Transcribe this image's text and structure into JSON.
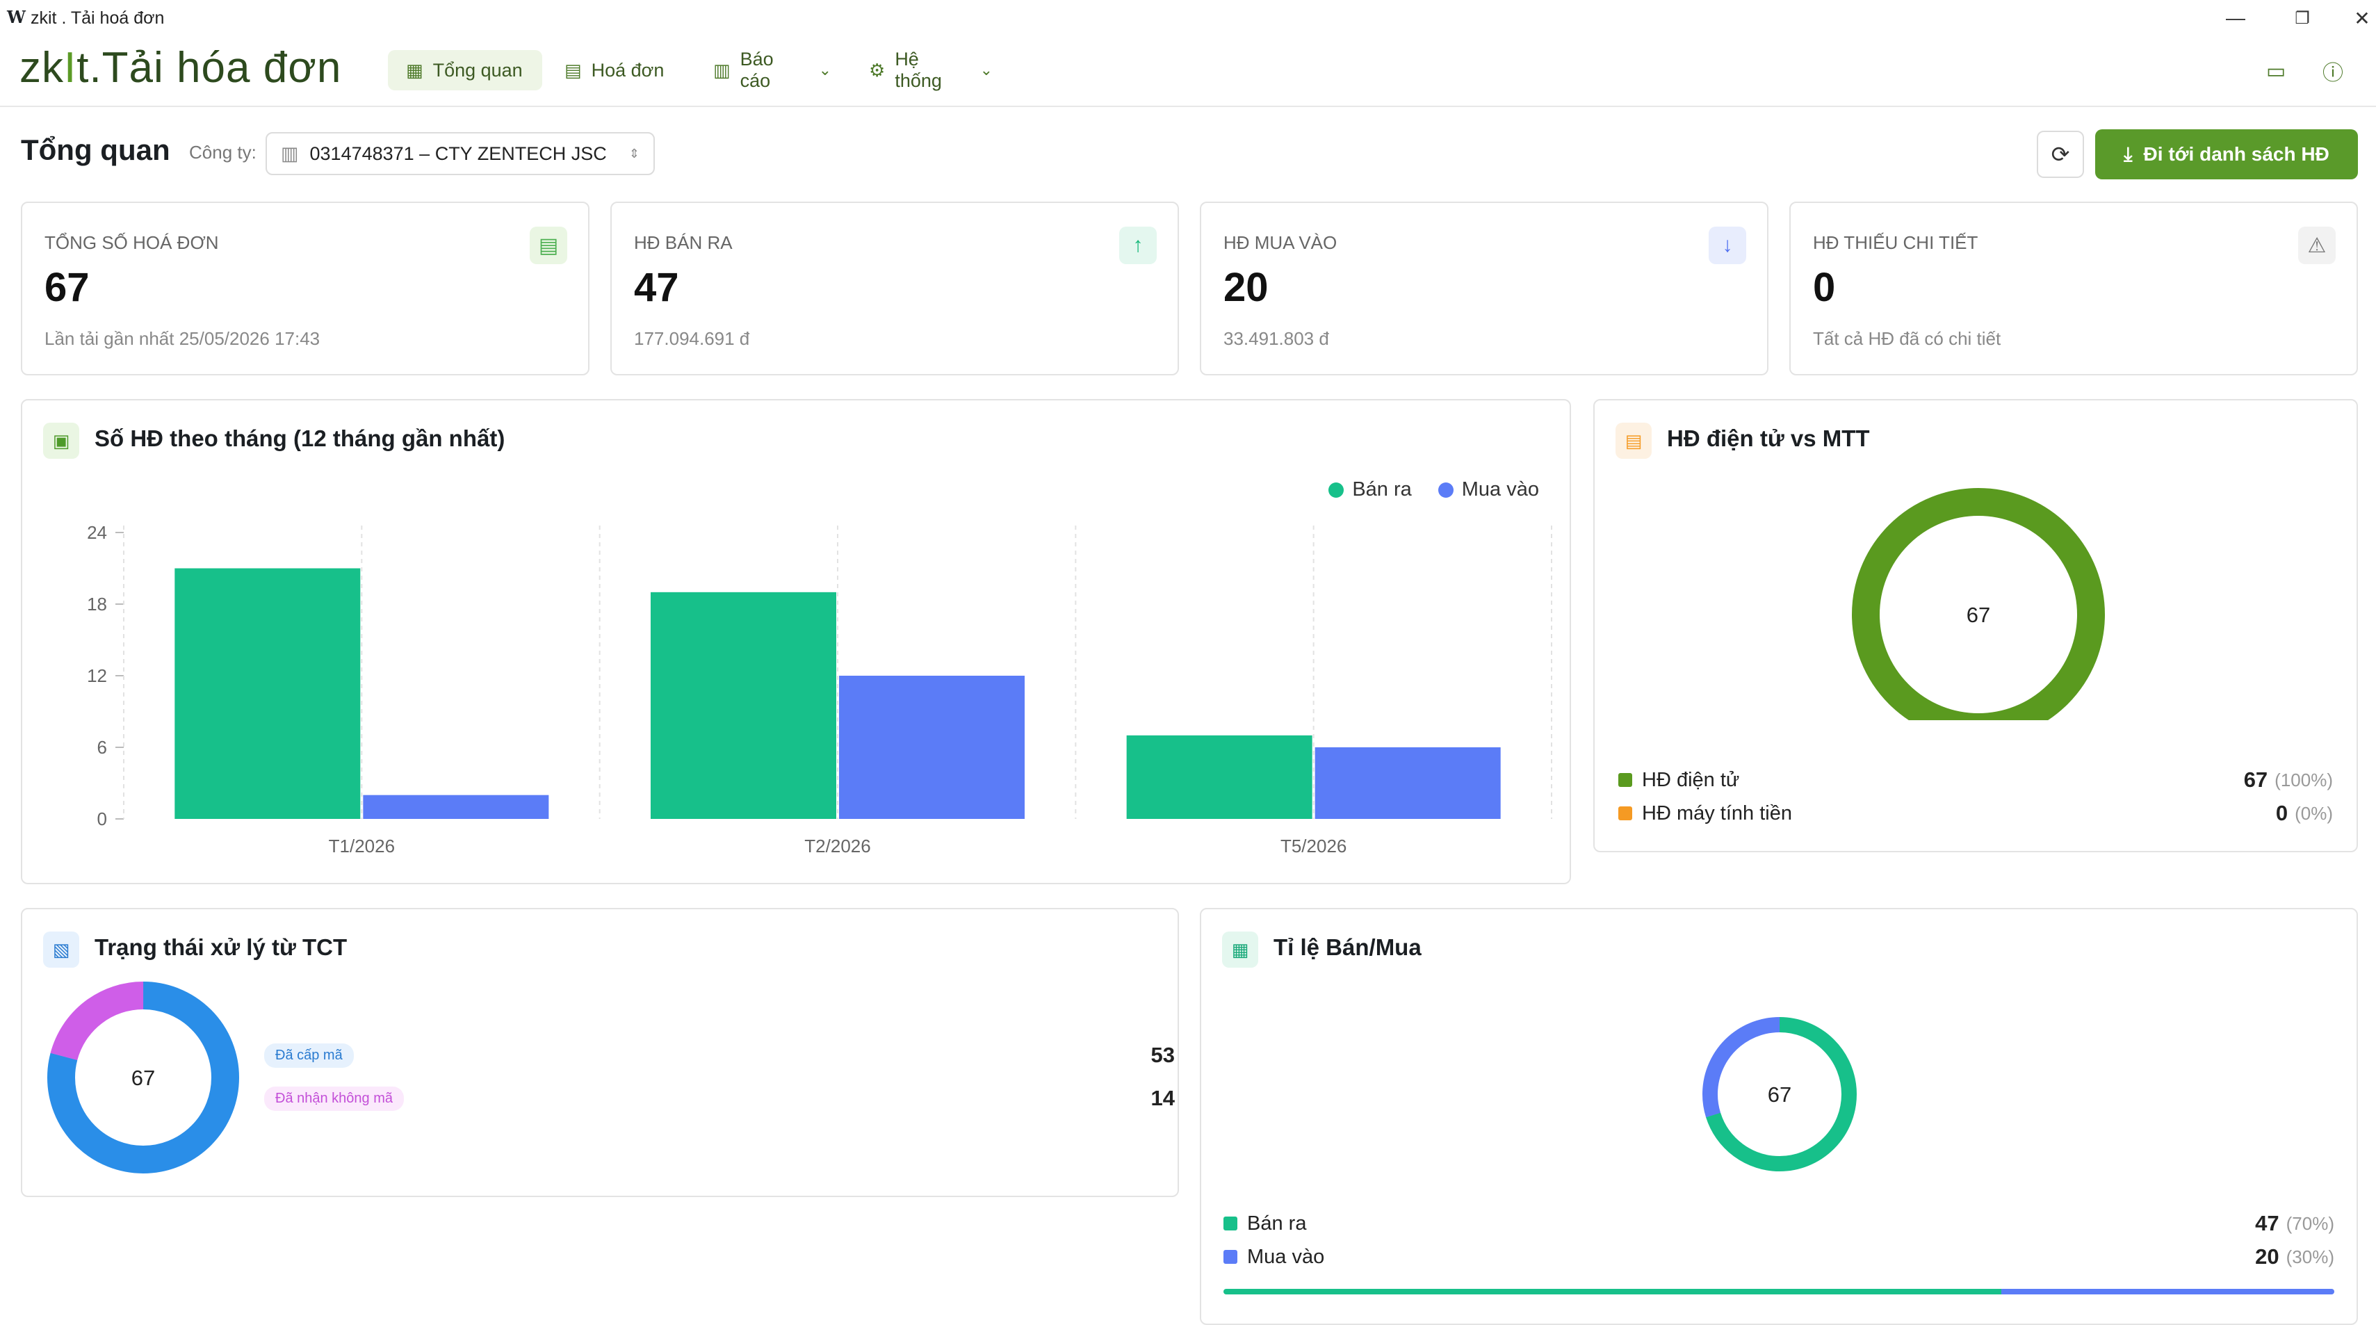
{
  "window": {
    "logo": "W",
    "title": "zkit . Tải hoá đơn"
  },
  "brand": {
    "prefix": "zk",
    "i": "I",
    "suffix": "t.Tải hóa đơn"
  },
  "nav": [
    {
      "label": "Tổng quan",
      "icon": "grid-icon",
      "active": true
    },
    {
      "label": "Hoá đơn",
      "icon": "receipt-icon"
    },
    {
      "label": "Báo cáo",
      "icon": "bar-chart-icon",
      "dropdown": true
    },
    {
      "label": "Hệ thống",
      "icon": "settings-icon",
      "dropdown": true
    }
  ],
  "header": {
    "title": "Tổng quan",
    "company_label": "Công ty:",
    "company_value": "0314748371 – CTY ZENTECH JSC",
    "go_button": "Đi tới danh sách HĐ"
  },
  "stats": [
    {
      "label": "Tổng số hoá đơn",
      "value": "67",
      "sub": "Lần tải gần nhất 25/05/2026 17:43",
      "icon": "file-icon",
      "icon_color": "#4caf50",
      "icon_bg": "#eaf6e3"
    },
    {
      "label": "HĐ bán ra",
      "value": "47",
      "sub": "177.094.691 đ",
      "icon": "arrow-up-icon",
      "icon_color": "#16b87a",
      "icon_bg": "#e4f7ef"
    },
    {
      "label": "HĐ mua vào",
      "value": "20",
      "sub": "33.491.803 đ",
      "icon": "arrow-down-icon",
      "icon_color": "#4f6ff0",
      "icon_bg": "#e8edfd"
    },
    {
      "label": "HĐ thiếu chi tiết",
      "value": "0",
      "sub": "Tất cả HĐ đã có chi tiết",
      "icon": "warning-icon",
      "icon_color": "#777777",
      "icon_bg": "#f2f2f2"
    }
  ],
  "monthly": {
    "title": "Số HĐ theo tháng (12 tháng gần nhất)",
    "legend": [
      "Bán ra",
      "Mua vào"
    ],
    "colors": {
      "ban_ra": "#17c08a",
      "mua_vao": "#5b7cf7"
    }
  },
  "chart_data": [
    {
      "type": "bar",
      "title": "Số HĐ theo tháng (12 tháng gần nhất)",
      "categories": [
        "T1/2026",
        "T2/2026",
        "T5/2026"
      ],
      "series": [
        {
          "name": "Bán ra",
          "values": [
            21,
            19,
            7
          ]
        },
        {
          "name": "Mua vào",
          "values": [
            2,
            12,
            6
          ]
        }
      ],
      "yticks": [
        0,
        6,
        12,
        18,
        24
      ],
      "ylim": [
        0,
        24
      ],
      "legend_position": "top-right",
      "grid": "vertical-dashed"
    },
    {
      "type": "pie",
      "title": "HĐ điện tử vs MTT",
      "center_label": "67",
      "labels": [
        "HĐ điện tử",
        "HĐ máy tính tiền"
      ],
      "values": [
        67,
        0
      ]
    },
    {
      "type": "pie",
      "title": "Trạng thái xử lý từ TCT",
      "center_label": "67",
      "labels": [
        "Đã cấp mã",
        "Đã nhận không mã"
      ],
      "values": [
        53,
        14
      ]
    },
    {
      "type": "pie",
      "title": "Tỉ lệ Bán/Mua",
      "center_label": "67",
      "labels": [
        "Bán ra",
        "Mua vào"
      ],
      "values": [
        47,
        20
      ]
    }
  ],
  "electronic": {
    "title": "HĐ điện tử vs MTT",
    "center": "67",
    "rows": [
      {
        "label": "HĐ điện tử",
        "value": "67",
        "pct": "(100%)",
        "color": "#5a9a1f"
      },
      {
        "label": "HĐ máy tính tiền",
        "value": "0",
        "pct": "(0%)",
        "color": "#f59a23"
      }
    ]
  },
  "status": {
    "title": "Trạng thái xử lý từ TCT",
    "center": "67",
    "rows": [
      {
        "label": "Đã cấp mã",
        "value": "53",
        "color": "#2a8ee8",
        "pill_bg": "#e6f1fd",
        "pill_fg": "#2a7bd0"
      },
      {
        "label": "Đã nhận không mã",
        "value": "14",
        "color": "#cf5ee8",
        "pill_bg": "#fbe9fc",
        "pill_fg": "#c34fd8"
      }
    ]
  },
  "ratio": {
    "title": "Tỉ lệ Bán/Mua",
    "center": "67",
    "rows": [
      {
        "label": "Bán ra",
        "value": "47",
        "pct": "(70%)",
        "color": "#17c08a"
      },
      {
        "label": "Mua vào",
        "value": "20",
        "pct": "(30%)",
        "color": "#5b7cf7"
      }
    ],
    "progress_fraction": 0.7
  }
}
